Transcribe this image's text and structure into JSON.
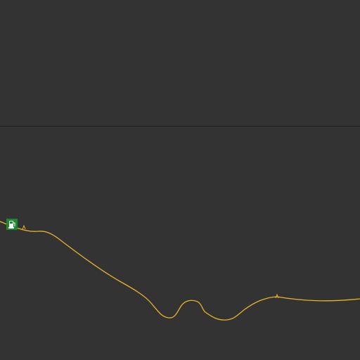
{
  "map": {
    "background_color": "#333333",
    "divider_color": "#232323",
    "road": {
      "color": "#e8b32a",
      "kind": "road"
    },
    "poi": {
      "icon": "fuel-station-icon",
      "color": "#1b8a2f",
      "glyph_color": "#ffffff"
    }
  }
}
